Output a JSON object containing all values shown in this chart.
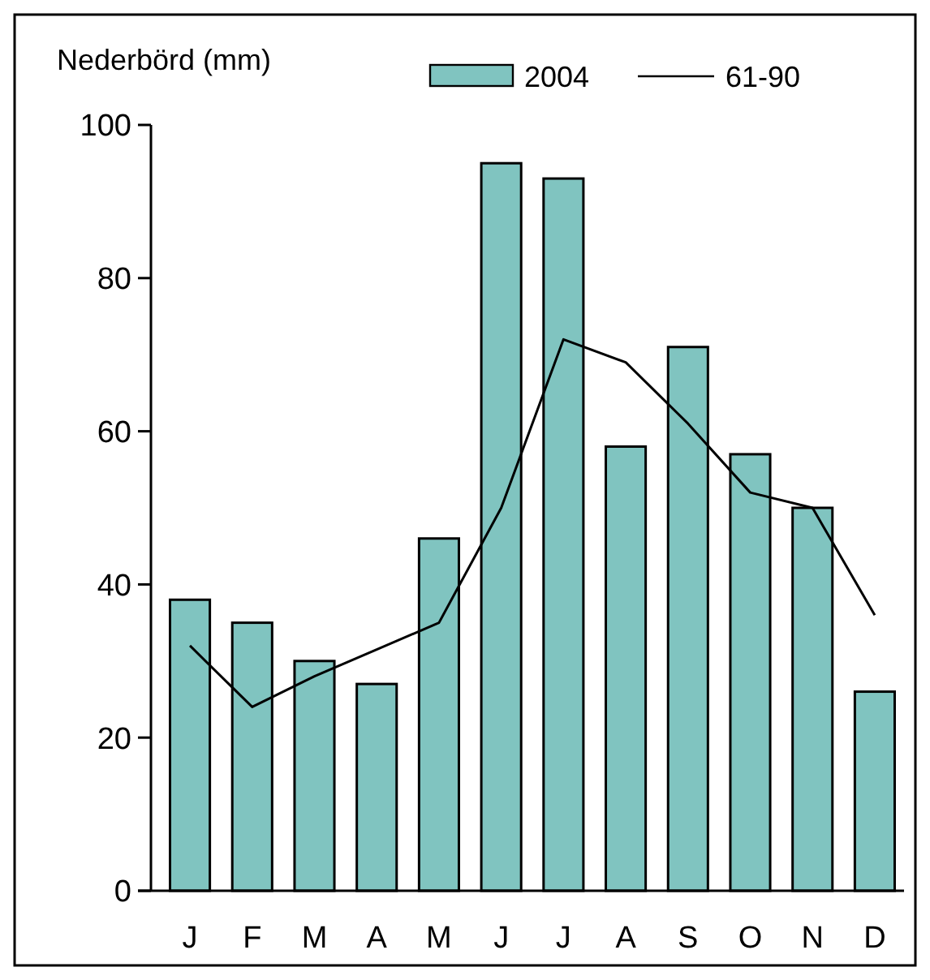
{
  "chart_data": {
    "type": "bar",
    "ylabel": "Nederbörd (mm)",
    "categories": [
      "J",
      "F",
      "M",
      "A",
      "M",
      "J",
      "J",
      "A",
      "S",
      "O",
      "N",
      "D"
    ],
    "series": [
      {
        "name": "2004",
        "color": "#80c4c0",
        "values": [
          38,
          35,
          30,
          27,
          46,
          95,
          93,
          58,
          71,
          57,
          50,
          26
        ]
      },
      {
        "name": "61-90",
        "type": "line",
        "color": "#000000",
        "values": [
          32,
          24,
          28,
          31.5,
          35,
          50,
          72,
          69,
          61,
          52,
          50,
          36
        ]
      }
    ],
    "ylim": [
      0,
      100
    ],
    "yticks": [
      0,
      20,
      40,
      60,
      80,
      100
    ],
    "grid": false,
    "legend": "top right",
    "marker": "none",
    "line_style": "solid"
  }
}
